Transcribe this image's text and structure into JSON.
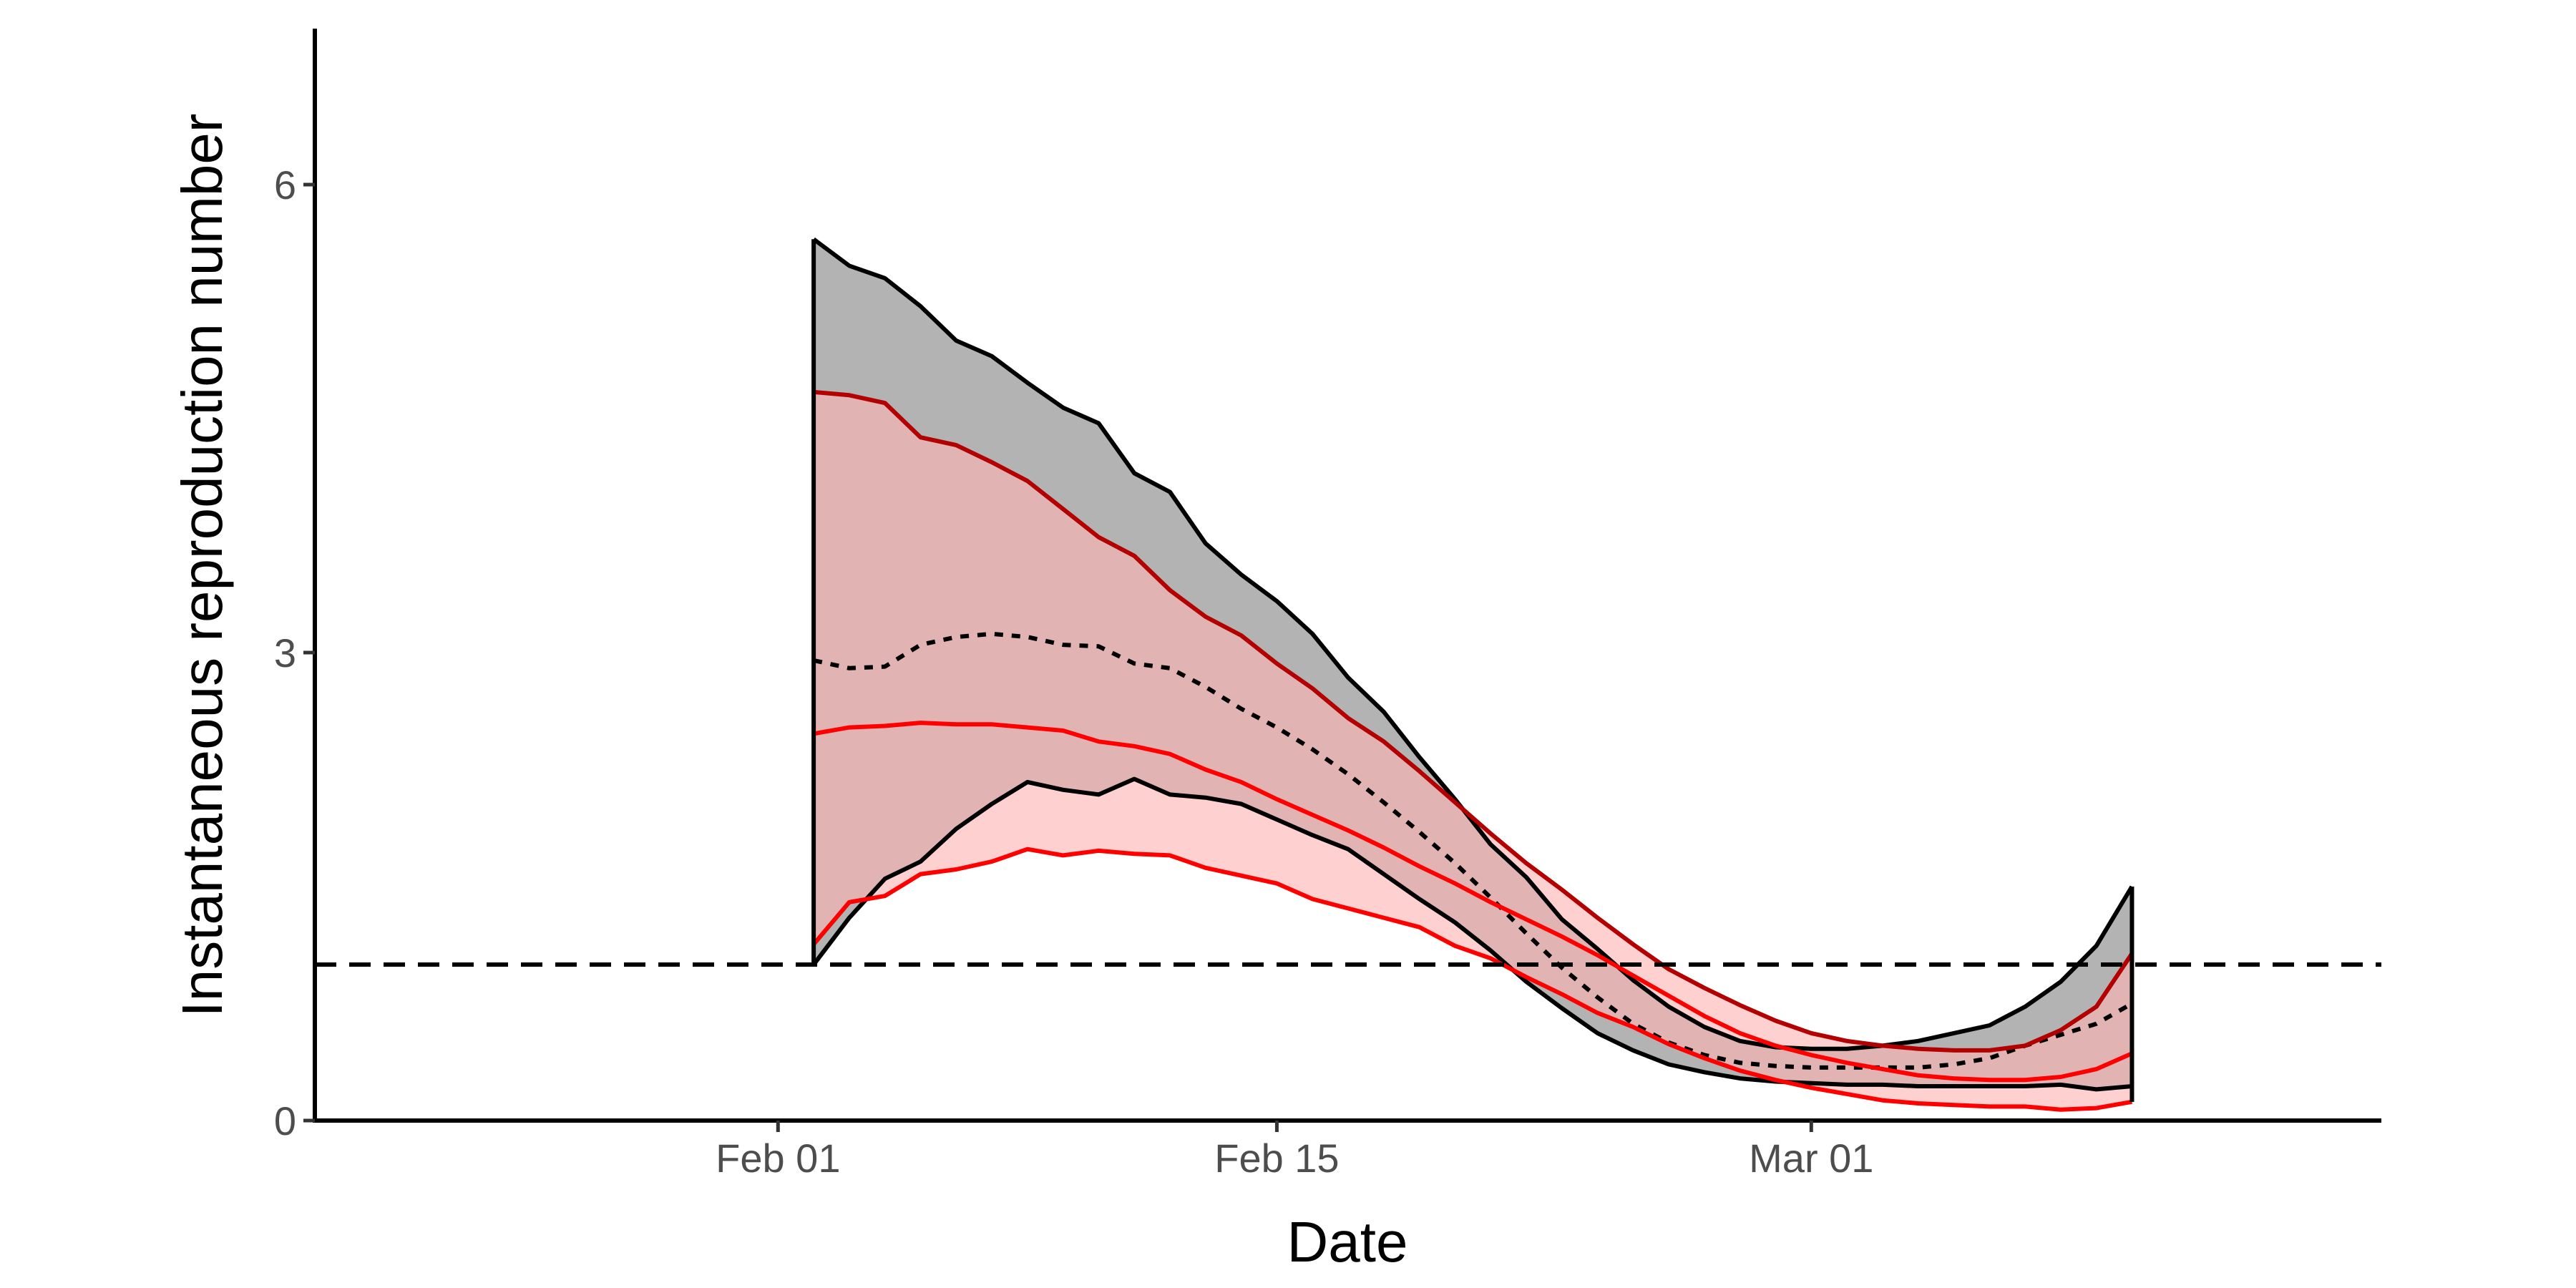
{
  "chart_data": {
    "type": "area",
    "title": "",
    "xlabel": "Date",
    "ylabel": "Instantaneous reproduction number",
    "x_axis": {
      "range": [
        "2020-01-19",
        "2020-03-17"
      ],
      "ticks": [
        {
          "date": "2020-02-01",
          "label": "Feb 01"
        },
        {
          "date": "2020-02-15",
          "label": "Feb 15"
        },
        {
          "date": "2020-03-01",
          "label": "Mar 01"
        }
      ]
    },
    "y_axis": {
      "range": [
        0,
        7
      ],
      "ticks": [
        0,
        3,
        6
      ]
    },
    "grid": false,
    "legend": "none",
    "reference_line": {
      "y": 1,
      "style": "dashed",
      "color": "#000000"
    },
    "x": [
      "2020-02-02",
      "2020-02-03",
      "2020-02-04",
      "2020-02-05",
      "2020-02-06",
      "2020-02-07",
      "2020-02-08",
      "2020-02-09",
      "2020-02-10",
      "2020-02-11",
      "2020-02-12",
      "2020-02-13",
      "2020-02-14",
      "2020-02-15",
      "2020-02-16",
      "2020-02-17",
      "2020-02-18",
      "2020-02-19",
      "2020-02-20",
      "2020-02-21",
      "2020-02-22",
      "2020-02-23",
      "2020-02-24",
      "2020-02-25",
      "2020-02-26",
      "2020-02-27",
      "2020-02-28",
      "2020-02-29",
      "2020-03-01",
      "2020-03-02",
      "2020-03-03",
      "2020-03-04",
      "2020-03-05",
      "2020-03-06",
      "2020-03-07",
      "2020-03-08",
      "2020-03-09",
      "2020-03-10"
    ],
    "series": [
      {
        "color": "#000000",
        "fill": "#b3b3b3",
        "median_style": "dotted",
        "median": [
          2.95,
          2.9,
          2.91,
          3.05,
          3.1,
          3.12,
          3.1,
          3.05,
          3.04,
          2.93,
          2.9,
          2.78,
          2.64,
          2.52,
          2.38,
          2.22,
          2.04,
          1.85,
          1.65,
          1.43,
          1.2,
          0.98,
          0.79,
          0.62,
          0.5,
          0.42,
          0.37,
          0.35,
          0.34,
          0.34,
          0.34,
          0.34,
          0.36,
          0.4,
          0.48,
          0.55,
          0.62,
          0.75
        ],
        "upper": [
          5.65,
          5.48,
          5.4,
          5.22,
          5.0,
          4.9,
          4.73,
          4.57,
          4.47,
          4.15,
          4.03,
          3.7,
          3.5,
          3.33,
          3.12,
          2.84,
          2.62,
          2.33,
          2.06,
          1.77,
          1.56,
          1.29,
          1.1,
          0.9,
          0.73,
          0.6,
          0.51,
          0.47,
          0.46,
          0.46,
          0.48,
          0.51,
          0.56,
          0.61,
          0.73,
          0.89,
          1.12,
          1.5
        ],
        "lower": [
          1.0,
          1.3,
          1.55,
          1.66,
          1.87,
          2.03,
          2.17,
          2.12,
          2.09,
          2.19,
          2.09,
          2.07,
          2.03,
          1.93,
          1.83,
          1.74,
          1.58,
          1.42,
          1.27,
          1.09,
          0.89,
          0.72,
          0.56,
          0.45,
          0.36,
          0.31,
          0.27,
          0.25,
          0.24,
          0.23,
          0.23,
          0.22,
          0.22,
          0.22,
          0.22,
          0.23,
          0.2,
          0.22
        ]
      },
      {
        "color": "#ff0000",
        "upper_color": "#b30000",
        "fill": "#ffb3b3",
        "median": [
          2.48,
          2.52,
          2.53,
          2.55,
          2.54,
          2.54,
          2.52,
          2.5,
          2.43,
          2.4,
          2.35,
          2.25,
          2.17,
          2.06,
          1.96,
          1.86,
          1.75,
          1.63,
          1.52,
          1.4,
          1.29,
          1.18,
          1.06,
          0.93,
          0.8,
          0.67,
          0.56,
          0.48,
          0.42,
          0.37,
          0.33,
          0.29,
          0.27,
          0.26,
          0.26,
          0.28,
          0.33,
          0.43
        ],
        "upper": [
          4.67,
          4.65,
          4.6,
          4.38,
          4.33,
          4.22,
          4.1,
          3.92,
          3.74,
          3.62,
          3.4,
          3.23,
          3.11,
          2.93,
          2.77,
          2.58,
          2.43,
          2.24,
          2.04,
          1.84,
          1.65,
          1.48,
          1.3,
          1.13,
          0.97,
          0.85,
          0.74,
          0.64,
          0.56,
          0.51,
          0.48,
          0.46,
          0.45,
          0.45,
          0.48,
          0.58,
          0.73,
          1.07
        ],
        "lower": [
          1.13,
          1.4,
          1.44,
          1.58,
          1.61,
          1.66,
          1.74,
          1.7,
          1.73,
          1.71,
          1.7,
          1.62,
          1.57,
          1.52,
          1.42,
          1.36,
          1.3,
          1.24,
          1.12,
          1.04,
          0.92,
          0.81,
          0.69,
          0.6,
          0.49,
          0.4,
          0.32,
          0.26,
          0.21,
          0.17,
          0.13,
          0.11,
          0.1,
          0.09,
          0.09,
          0.07,
          0.08,
          0.12
        ]
      }
    ]
  }
}
